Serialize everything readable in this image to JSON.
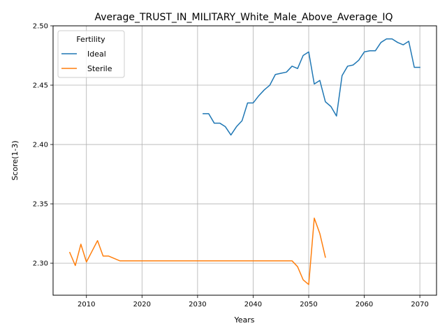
{
  "chart_data": {
    "type": "line",
    "title": "Average_TRUST_IN_MILITARY_White_Male_Above_Average_IQ",
    "xlabel": "Years",
    "ylabel": "Score(1-3)",
    "xlim": [
      2004,
      2073
    ],
    "ylim": [
      2.273,
      2.5
    ],
    "xticks": [
      2010,
      2020,
      2030,
      2040,
      2050,
      2060,
      2070
    ],
    "yticks": [
      2.3,
      2.35,
      2.4,
      2.45,
      2.5
    ],
    "ytick_labels": [
      "2.30",
      "2.35",
      "2.40",
      "2.45",
      "2.50"
    ],
    "grid": true,
    "legend": {
      "title": "Fertility",
      "position": "top-left"
    },
    "series": [
      {
        "name": "Ideal",
        "color": "#1f77b4",
        "x": [
          2031,
          2032,
          2033,
          2034,
          2035,
          2036,
          2037,
          2038,
          2039,
          2040,
          2041,
          2042,
          2043,
          2044,
          2045,
          2046,
          2047,
          2048,
          2049,
          2050,
          2051,
          2052,
          2053,
          2054,
          2055,
          2056,
          2057,
          2058,
          2059,
          2060,
          2061,
          2062,
          2063,
          2064,
          2065,
          2066,
          2067,
          2068,
          2069,
          2070
        ],
        "y": [
          2.426,
          2.426,
          2.418,
          2.418,
          2.415,
          2.408,
          2.415,
          2.42,
          2.435,
          2.435,
          2.441,
          2.446,
          2.45,
          2.459,
          2.46,
          2.461,
          2.466,
          2.464,
          2.475,
          2.478,
          2.451,
          2.454,
          2.436,
          2.432,
          2.424,
          2.458,
          2.466,
          2.467,
          2.471,
          2.478,
          2.479,
          2.479,
          2.486,
          2.489,
          2.489,
          2.486,
          2.484,
          2.487,
          2.465,
          2.465
        ]
      },
      {
        "name": "Sterile",
        "color": "#ff7f0e",
        "x": [
          2007,
          2008,
          2009,
          2010,
          2011,
          2012,
          2013,
          2014,
          2015,
          2016,
          2017,
          2018,
          2019,
          2020,
          2025,
          2030,
          2035,
          2040,
          2045,
          2046,
          2047,
          2048,
          2049,
          2050,
          2051,
          2052,
          2053
        ],
        "y": [
          2.309,
          2.298,
          2.316,
          2.301,
          2.31,
          2.319,
          2.306,
          2.306,
          2.304,
          2.302,
          2.302,
          2.302,
          2.302,
          2.302,
          2.302,
          2.302,
          2.302,
          2.302,
          2.302,
          2.302,
          2.302,
          2.297,
          2.286,
          2.282,
          2.338,
          2.325,
          2.305
        ]
      }
    ]
  }
}
